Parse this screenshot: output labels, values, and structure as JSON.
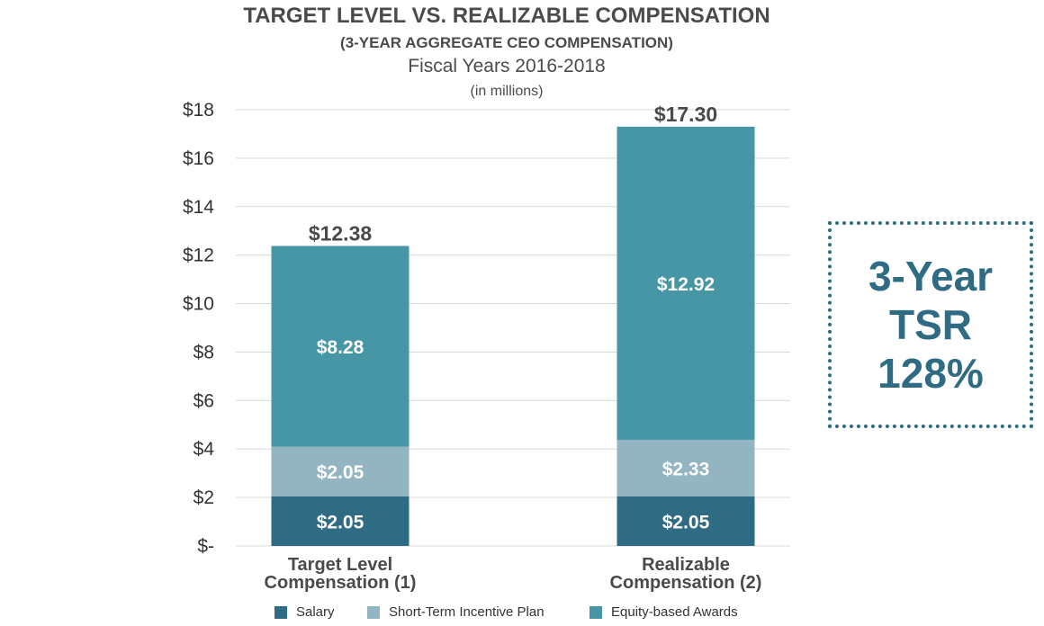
{
  "title": "TARGET LEVEL VS. REALIZABLE COMPENSATION",
  "subtitle": "(3-YEAR AGGREGATE CEO COMPENSATION)",
  "period": "Fiscal Years 2016-2018",
  "units": "(in millions)",
  "tsr_box": {
    "line1": "3-Year",
    "line2": "TSR",
    "line3": "128%",
    "border_color": "#2f6b83"
  },
  "colors": {
    "salary": "#2f6b83",
    "sti": "#93b4c1",
    "equity": "#4796a5"
  },
  "chart_data": {
    "type": "bar",
    "stacked": true,
    "categories": [
      "Target Level\nCompensation (1)",
      "Realizable\nCompensation (2)"
    ],
    "series": [
      {
        "name": "Salary",
        "values": [
          2.05,
          2.05
        ],
        "labels": [
          "$2.05",
          "$2.05"
        ]
      },
      {
        "name": "Short-Term Incentive Plan",
        "values": [
          2.05,
          2.33
        ],
        "labels": [
          "$2.05",
          "$2.33"
        ]
      },
      {
        "name": "Equity-based Awards",
        "values": [
          8.28,
          12.92
        ],
        "labels": [
          "$8.28",
          "$12.92"
        ]
      }
    ],
    "totals": [
      12.38,
      17.3
    ],
    "total_labels": [
      "$12.38",
      "$17.30"
    ],
    "ylim": [
      0,
      18
    ],
    "yticks": [
      0,
      2,
      4,
      6,
      8,
      10,
      12,
      14,
      16,
      18
    ],
    "ytick_labels": [
      "$-",
      "$2",
      "$4",
      "$6",
      "$8",
      "$10",
      "$12",
      "$14",
      "$16",
      "$18"
    ],
    "grid": true,
    "legend_position": "bottom"
  }
}
